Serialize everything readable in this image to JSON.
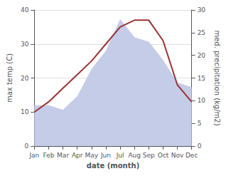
{
  "chart_data": {
    "type": "line",
    "categories": [
      "Jan",
      "Feb",
      "Mar",
      "Apr",
      "May",
      "Jun",
      "Jul",
      "Aug",
      "Sep",
      "Oct",
      "Nov",
      "Dec"
    ],
    "xlabel": "date (month)",
    "ylabel": "max temp (C)",
    "y2label": "med. precipitation (kg/m2)",
    "series": [
      {
        "type": "area",
        "axis": "y2",
        "color": "#c5cce8",
        "values": [
          9,
          9,
          8,
          11,
          17,
          21,
          28,
          24,
          23,
          19,
          14,
          13
        ]
      },
      {
        "type": "line",
        "color": "#993333",
        "values": [
          10,
          13,
          17,
          21,
          25,
          30,
          35,
          37,
          37,
          31,
          18,
          13
        ]
      }
    ],
    "ylim": [
      0,
      40
    ],
    "yticks": [
      0,
      10,
      20,
      30,
      40
    ],
    "y2lim": [
      0,
      30
    ],
    "y2ticks": [
      0,
      5,
      10,
      15,
      20,
      25,
      30
    ],
    "grid": true
  }
}
